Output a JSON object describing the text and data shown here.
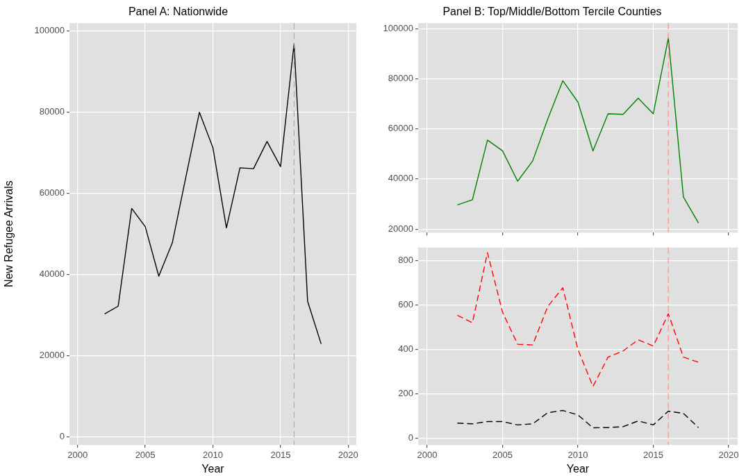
{
  "chart_data": [
    {
      "type": "line",
      "title": "Panel A: Nationwide",
      "xlabel": "Year",
      "ylabel": "New Refugee Arrivals",
      "x": [
        2002,
        2003,
        2004,
        2005,
        2006,
        2007,
        2008,
        2009,
        2010,
        2011,
        2012,
        2013,
        2014,
        2015,
        2016,
        2017,
        2018
      ],
      "series": [
        {
          "color": "#000000",
          "line_style": "solid",
          "values": [
            30300,
            32200,
            56300,
            51800,
            39600,
            47800,
            64000,
            80000,
            71300,
            51500,
            66300,
            66100,
            72800,
            66600,
            96900,
            33400,
            22900
          ]
        }
      ],
      "xlim": [
        1999.4,
        2020.6
      ],
      "xticks": [
        2000,
        2005,
        2010,
        2015,
        2020
      ],
      "ylim": [
        -2000,
        102000
      ],
      "yticks": [
        0,
        20000,
        40000,
        60000,
        80000,
        100000
      ],
      "grid": true,
      "ref_lines": [
        {
          "axis": "x",
          "value": 2016,
          "color": "#ff8080",
          "line_style": "dashed"
        }
      ]
    },
    {
      "type": "line",
      "title": "Panel B: Top/Middle/Bottom Tercile Counties",
      "x": [
        2002,
        2003,
        2004,
        2005,
        2006,
        2007,
        2008,
        2009,
        2010,
        2011,
        2012,
        2013,
        2014,
        2015,
        2016,
        2017,
        2018
      ],
      "series": [
        {
          "color": "#008000",
          "line_style": "solid",
          "values": [
            29600,
            31700,
            55500,
            51200,
            39100,
            47200,
            63900,
            79200,
            70700,
            51200,
            66000,
            65800,
            72200,
            66000,
            96200,
            32800,
            22400
          ]
        }
      ],
      "xlim": [
        1999.4,
        2020.6
      ],
      "xticks": [
        2000,
        2005,
        2010,
        2015,
        2020
      ],
      "ylim": [
        18600,
        102200
      ],
      "yticks": [
        20000,
        40000,
        60000,
        80000,
        100000
      ],
      "grid": true,
      "tick_labels": "y",
      "ref_lines": [
        {
          "axis": "x",
          "value": 2016,
          "color": "#ff8080",
          "line_style": "dashed"
        }
      ]
    },
    {
      "type": "line",
      "xlabel": "Year",
      "x": [
        2002,
        2003,
        2004,
        2005,
        2006,
        2007,
        2008,
        2009,
        2010,
        2011,
        2012,
        2013,
        2014,
        2015,
        2016,
        2017,
        2018
      ],
      "series": [
        {
          "color": "#ff0000",
          "line_style": "dashed",
          "values": [
            553,
            520,
            835,
            567,
            423,
            420,
            593,
            677,
            400,
            233,
            365,
            393,
            443,
            415,
            560,
            365,
            342
          ]
        },
        {
          "color": "#000000",
          "line_style": "dashed",
          "values": [
            68,
            65,
            75,
            75,
            60,
            65,
            115,
            125,
            105,
            47,
            48,
            52,
            78,
            60,
            122,
            112,
            48
          ]
        }
      ],
      "xlim": [
        1999.4,
        2020.6
      ],
      "xticks": [
        2000,
        2005,
        2010,
        2015,
        2020
      ],
      "ylim": [
        -30,
        858
      ],
      "yticks": [
        0,
        200,
        400,
        600,
        800
      ],
      "grid": true,
      "ref_lines": [
        {
          "axis": "x",
          "value": 2016,
          "color": "#ff8080",
          "line_style": "dashed"
        }
      ]
    }
  ]
}
